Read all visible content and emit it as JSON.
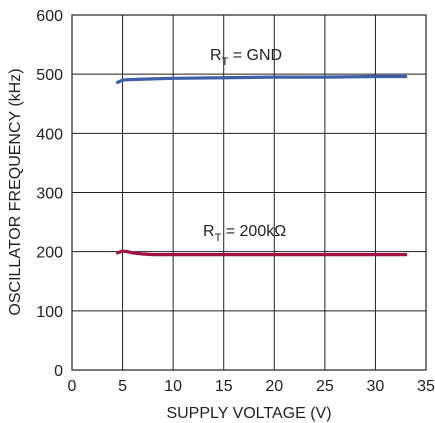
{
  "chart_data": {
    "type": "line",
    "xlabel": "SUPPLY VOLTAGE (V)",
    "ylabel": "OSCILLATOR FREQUENCY (kHz)",
    "xlim": [
      0,
      35
    ],
    "ylim": [
      0,
      600
    ],
    "x_ticks": [
      "0",
      "5",
      "10",
      "15",
      "20",
      "25",
      "30",
      "35"
    ],
    "y_ticks": [
      "0",
      "100",
      "200",
      "300",
      "400",
      "500",
      "600"
    ],
    "grid": true,
    "series": [
      {
        "name_main": "R",
        "name_sub": "T",
        "name_rest": " = GND",
        "color": "#3d5ea8",
        "x": [
          4.5,
          5,
          6,
          8,
          10,
          15,
          20,
          25,
          30,
          33
        ],
        "y": [
          486,
          490,
          491,
          492,
          493,
          494,
          495,
          495,
          496,
          496
        ]
      },
      {
        "name_main": "R",
        "name_sub": "T",
        "name_rest": " = 200kΩ",
        "color": "#a4123f",
        "x": [
          4.5,
          5,
          5.5,
          6,
          7,
          8,
          10,
          15,
          20,
          25,
          30,
          33
        ],
        "y": [
          198,
          201,
          200,
          198,
          196,
          195,
          195,
          195,
          195,
          195,
          195,
          195
        ]
      }
    ]
  }
}
